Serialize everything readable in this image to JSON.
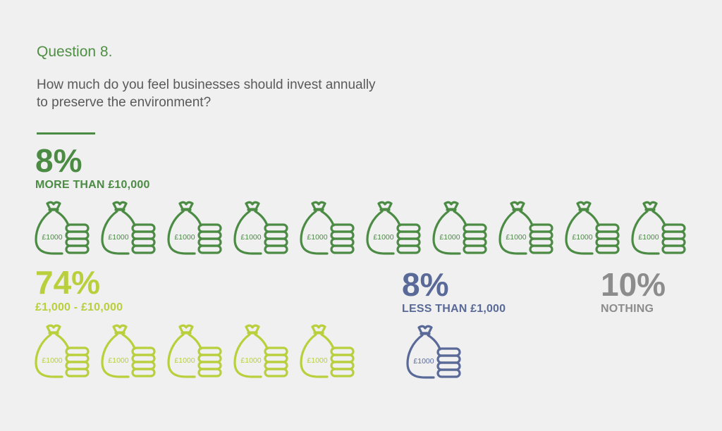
{
  "question": {
    "label": "Question 8.",
    "text_line1": "How much do you feel businesses should invest annually",
    "text_line2": "to preserve the environment?"
  },
  "icon": "money-bag-with-coins-icon",
  "bag_label": "£1000",
  "groups": [
    {
      "id": "more-than-10000",
      "percent": "8%",
      "label": "MORE THAN £10,000",
      "color": "#4b8b44",
      "bag_count": 10
    },
    {
      "id": "1000-10000",
      "percent": "74%",
      "label": "£1,000 - £10,000",
      "color": "#b9cf3c",
      "bag_count": 5
    },
    {
      "id": "less-than-1000",
      "percent": "8%",
      "label": "LESS THAN £1,000",
      "color": "#5a6a98",
      "bag_count": 1
    },
    {
      "id": "nothing",
      "percent": "10%",
      "label": "NOTHING",
      "color": "#8c8c8c",
      "bag_count": 0
    }
  ]
}
